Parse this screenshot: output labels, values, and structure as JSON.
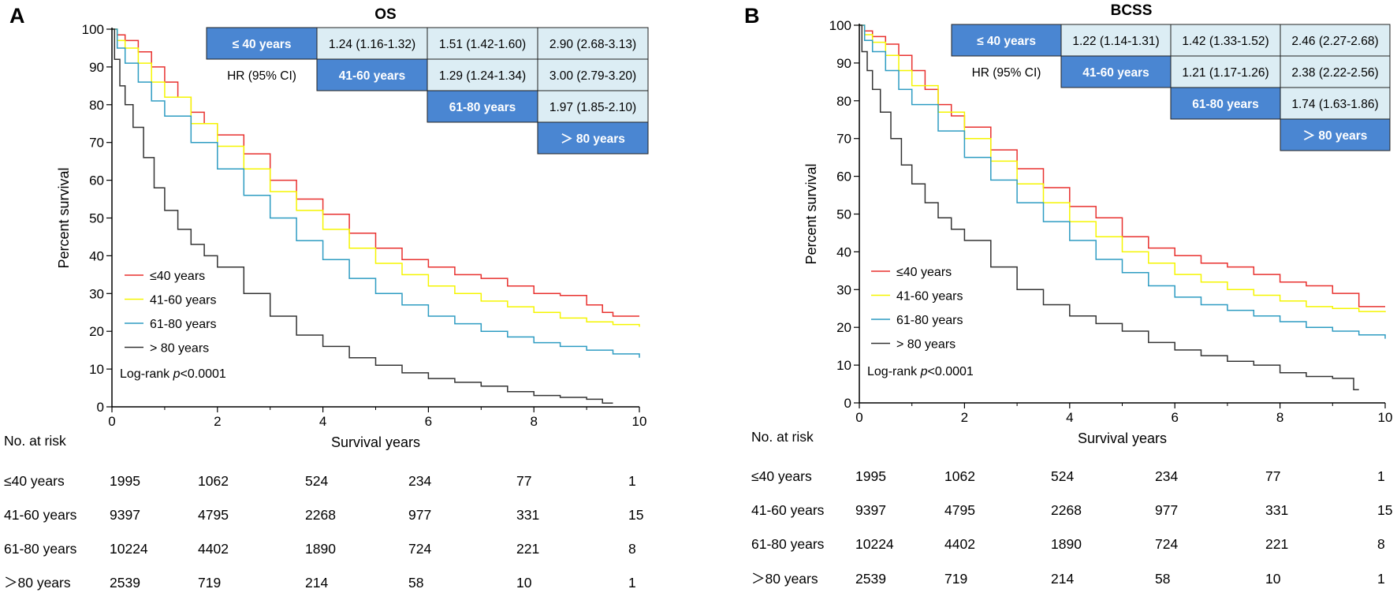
{
  "chart_data": [
    {
      "type": "line",
      "panel_label": "A",
      "title": "OS",
      "xlabel": "Survival years",
      "ylabel": "Percent survival",
      "xlim": [
        0,
        10
      ],
      "ylim": [
        0,
        100
      ],
      "x_ticks": [
        0,
        2,
        4,
        6,
        8,
        10
      ],
      "y_ticks": [
        0,
        10,
        20,
        30,
        40,
        50,
        60,
        70,
        80,
        90,
        100
      ],
      "logrank_prefix": "Log-rank ",
      "logrank_p": "p",
      "logrank_value": "<0.0001",
      "series": [
        {
          "name": "≤40 years",
          "color": "#e8312f",
          "x": [
            0,
            0.1,
            0.25,
            0.5,
            0.75,
            1,
            1.25,
            1.5,
            1.75,
            2,
            2.5,
            3,
            3.5,
            4,
            4.5,
            5,
            5.5,
            6,
            6.5,
            7,
            7.5,
            8,
            8.5,
            9,
            9.3,
            9.5,
            10
          ],
          "y": [
            100,
            98.5,
            97,
            94,
            90,
            86,
            82,
            78,
            75,
            72,
            67,
            60,
            55,
            51,
            46,
            42,
            39,
            37,
            35,
            34,
            32,
            30,
            29.5,
            27,
            25,
            24,
            24
          ]
        },
        {
          "name": "41-60 years",
          "color": "#f5f500",
          "x": [
            0,
            0.1,
            0.25,
            0.5,
            0.75,
            1,
            1.5,
            2,
            2.5,
            3,
            3.5,
            4,
            4.5,
            5,
            5.5,
            6,
            6.5,
            7,
            7.5,
            8,
            8.5,
            9,
            9.5,
            10
          ],
          "y": [
            100,
            97,
            95,
            91,
            86,
            82,
            75,
            69,
            63,
            57,
            52,
            47,
            42,
            38,
            35,
            32,
            30,
            28,
            26.5,
            25,
            23.5,
            22.5,
            21.8,
            21.2
          ]
        },
        {
          "name": "61-80 years",
          "color": "#2e9cc2",
          "x": [
            0,
            0.1,
            0.25,
            0.5,
            0.75,
            1,
            1.5,
            2,
            2.5,
            3,
            3.5,
            4,
            4.5,
            5,
            5.5,
            6,
            6.5,
            7,
            7.5,
            8,
            8.5,
            9,
            9.5,
            10
          ],
          "y": [
            100,
            95,
            91,
            86,
            81,
            77,
            70,
            63,
            56,
            50,
            44,
            39,
            34,
            30,
            27,
            24,
            22,
            20,
            18.5,
            17,
            16,
            15,
            14,
            13
          ]
        },
        {
          "name": "> 80 years",
          "color": "#333333",
          "x": [
            0,
            0.05,
            0.15,
            0.25,
            0.4,
            0.6,
            0.8,
            1,
            1.25,
            1.5,
            1.75,
            2,
            2.5,
            3,
            3.5,
            4,
            4.5,
            5,
            5.5,
            6,
            6.5,
            7,
            7.5,
            8,
            8.5,
            9,
            9.3,
            9.5
          ],
          "y": [
            100,
            92,
            85,
            80,
            74,
            66,
            58,
            52,
            47,
            43,
            40,
            37,
            30,
            24,
            19,
            16,
            13,
            11,
            9,
            7.5,
            6.5,
            5.5,
            4,
            3,
            2.5,
            2,
            1,
            1
          ]
        }
      ],
      "hr_table": {
        "label": "HR (95% CI)",
        "rows": [
          [
            "≤ 40 years",
            "1.24 (1.16-1.32)",
            "1.51 (1.42-1.60)",
            "2.90 (2.68-3.13)"
          ],
          [
            "41-60 years",
            "1.29 (1.24-1.34)",
            "3.00 (2.79-3.20)"
          ],
          [
            "61-80 years",
            "1.97 (1.85-2.10)"
          ],
          [
            "＞ 80 years"
          ]
        ]
      },
      "risk_table": {
        "title": "No. at risk",
        "rows": [
          {
            "label": "≤40 years",
            "values": [
              "1995",
              "1062",
              "524",
              "234",
              "77",
              "1"
            ]
          },
          {
            "label": "41-60 years",
            "values": [
              "9397",
              "4795",
              "2268",
              "977",
              "331",
              "15"
            ]
          },
          {
            "label": "61-80 years",
            "values": [
              "10224",
              "4402",
              "1890",
              "724",
              "221",
              "8"
            ]
          },
          {
            "label": "＞80 years",
            "values": [
              "2539",
              "719",
              "214",
              "58",
              "10",
              "1"
            ]
          }
        ]
      }
    },
    {
      "type": "line",
      "panel_label": "B",
      "title": "BCSS",
      "xlabel": "Survival years",
      "ylabel": "Percent survival",
      "xlim": [
        0,
        10
      ],
      "ylim": [
        0,
        100
      ],
      "x_ticks": [
        0,
        2,
        4,
        6,
        8,
        10
      ],
      "y_ticks": [
        0,
        10,
        20,
        30,
        40,
        50,
        60,
        70,
        80,
        90,
        100
      ],
      "logrank_prefix": "Log-rank ",
      "logrank_p": "p",
      "logrank_value": "<0.0001",
      "series": [
        {
          "name": "≤40 years",
          "color": "#e8312f",
          "x": [
            0,
            0.1,
            0.25,
            0.5,
            0.75,
            1,
            1.25,
            1.5,
            1.75,
            2,
            2.5,
            3,
            3.5,
            4,
            4.5,
            5,
            5.5,
            6,
            6.5,
            7,
            7.5,
            8,
            8.5,
            9,
            9.5,
            10
          ],
          "y": [
            100,
            98.5,
            97,
            95,
            92,
            88,
            83,
            79,
            76,
            73,
            67,
            62,
            57,
            52,
            49,
            44,
            41,
            39,
            37,
            36,
            34,
            32,
            31,
            29,
            25.5,
            25.5
          ]
        },
        {
          "name": "41-60 years",
          "color": "#f5f500",
          "x": [
            0,
            0.1,
            0.25,
            0.5,
            0.75,
            1,
            1.5,
            2,
            2.5,
            3,
            3.5,
            4,
            4.5,
            5,
            5.5,
            6,
            6.5,
            7,
            7.5,
            8,
            8.5,
            9,
            9.5,
            10
          ],
          "y": [
            100,
            97.5,
            95.5,
            92,
            88,
            84,
            77,
            70,
            64,
            58,
            53,
            48,
            44,
            40,
            37,
            34,
            32,
            30,
            28.5,
            27,
            25.5,
            25,
            24.2,
            24
          ]
        },
        {
          "name": "61-80 years",
          "color": "#2e9cc2",
          "x": [
            0,
            0.1,
            0.25,
            0.5,
            0.75,
            1,
            1.5,
            2,
            2.5,
            3,
            3.5,
            4,
            4.5,
            5,
            5.5,
            6,
            6.5,
            7,
            7.5,
            8,
            8.5,
            9,
            9.5,
            10
          ],
          "y": [
            100,
            96,
            93,
            88,
            83,
            79,
            72,
            65,
            59,
            53,
            48,
            43,
            38,
            34.5,
            31,
            28,
            26,
            24.5,
            23,
            21.5,
            20,
            19,
            18,
            17
          ]
        },
        {
          "name": "> 80 years",
          "color": "#333333",
          "x": [
            0,
            0.05,
            0.15,
            0.25,
            0.4,
            0.6,
            0.8,
            1,
            1.25,
            1.5,
            1.75,
            2,
            2.5,
            3,
            3.5,
            4,
            4.5,
            5,
            5.5,
            6,
            6.5,
            7,
            7.5,
            8,
            8.5,
            9,
            9.3,
            9.4,
            9.5
          ],
          "y": [
            100,
            93,
            88,
            83,
            77,
            70,
            63,
            58,
            53,
            49,
            46,
            43,
            36,
            30,
            26,
            23,
            21,
            19,
            16,
            14,
            12.5,
            11,
            10,
            8,
            7,
            6.5,
            6.5,
            3.5,
            3.5
          ]
        }
      ],
      "hr_table": {
        "label": "HR (95% CI)",
        "rows": [
          [
            "≤ 40 years",
            "1.22 (1.14-1.31)",
            "1.42 (1.33-1.52)",
            "2.46 (2.27-2.68)"
          ],
          [
            "41-60 years",
            "1.21 (1.17-1.26)",
            "2.38 (2.22-2.56)"
          ],
          [
            "61-80 years",
            "1.74 (1.63-1.86)"
          ],
          [
            "＞ 80 years"
          ]
        ]
      },
      "risk_table": {
        "title": "No. at risk",
        "rows": [
          {
            "label": "≤40 years",
            "values": [
              "1995",
              "1062",
              "524",
              "234",
              "77",
              "1"
            ]
          },
          {
            "label": "41-60 years",
            "values": [
              "9397",
              "4795",
              "2268",
              "977",
              "331",
              "15"
            ]
          },
          {
            "label": "61-80 years",
            "values": [
              "10224",
              "4402",
              "1890",
              "724",
              "221",
              "8"
            ]
          },
          {
            "label": "＞80 years",
            "values": [
              "2539",
              "719",
              "214",
              "58",
              "10",
              "1"
            ]
          }
        ]
      }
    }
  ]
}
